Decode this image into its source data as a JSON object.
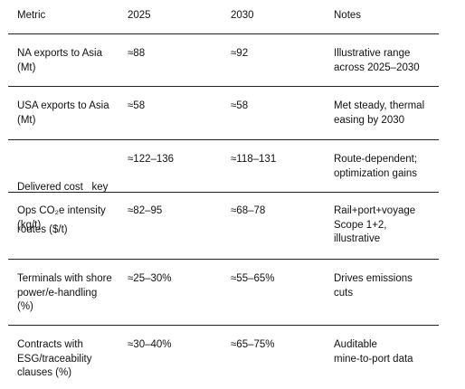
{
  "columns": {
    "metric": "Metric",
    "y2025": "2025",
    "y2030": "2030",
    "notes": "Notes"
  },
  "rows": [
    {
      "metric": [
        "NA exports to Asia",
        "(Mt)"
      ],
      "y2025": "≈88",
      "y2030": "≈92",
      "notes": [
        "Illustrative range",
        "across 2025–2030"
      ]
    },
    {
      "metric": [
        "USA exports to Asia",
        "(Mt)"
      ],
      "y2025": "≈58",
      "y2030": "≈58",
      "notes": [
        "Met steady, thermal",
        "easing by 2030"
      ]
    },
    {
      "metric": [
        "Delivered cost   key",
        "routes ($/t)"
      ],
      "y2025": "≈122–136",
      "y2030": "≈118–131",
      "notes": [
        "Route-dependent;",
        "optimization gains"
      ]
    },
    {
      "metric": [
        "Ops CO₂e intensity",
        "(kg/t)"
      ],
      "y2025": "≈82–95",
      "y2030": "≈68–78",
      "notes": [
        "Rail+port+voyage",
        "Scope 1+2,",
        "illustrative"
      ]
    },
    {
      "metric": [
        "Terminals with shore",
        "power/e-handling",
        "(%)"
      ],
      "y2025": "≈25–30%",
      "y2030": "≈55–65%",
      "notes": [
        "Drives emissions",
        "cuts"
      ]
    },
    {
      "metric": [
        "Contracts with",
        "ESG/traceability",
        "clauses (%)"
      ],
      "y2025": "≈30–40%",
      "y2030": "≈65–75%",
      "notes": [
        "Auditable",
        "mine-to-port data"
      ]
    }
  ]
}
